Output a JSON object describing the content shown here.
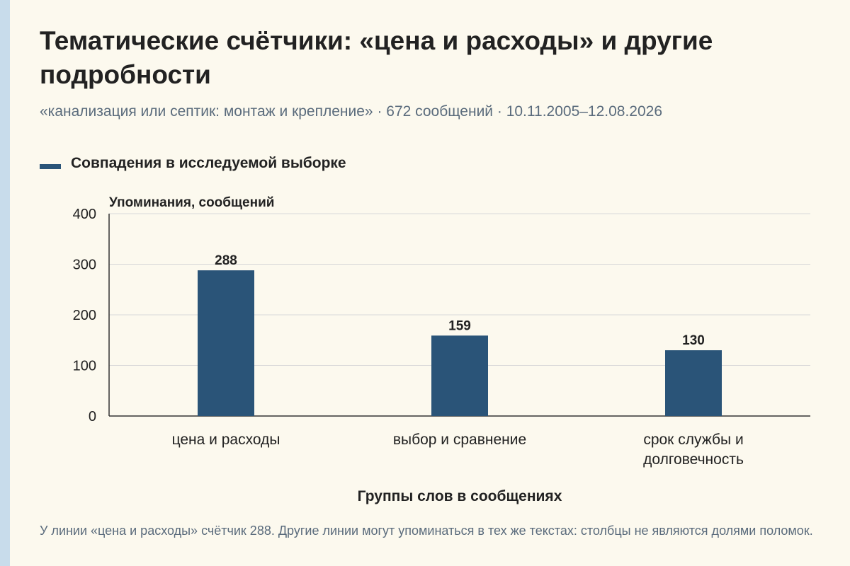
{
  "header": {
    "title": "Тематические счётчики: «цена и расходы» и другие подробности",
    "subtitle": "«канализация или септик: монтаж и крепление» · 672 сообщений · 10.11.2005–12.08.2026"
  },
  "legend": {
    "label": "Совпадения в исследуемой выборке"
  },
  "footnote": "У линии «цена и расходы» счётчик 288. Другие линии могут упоминаться в тех же текстах: столбцы не являются долями поломок.",
  "colors": {
    "bar": "#2a5478",
    "grid": "#d9d9d9",
    "axis": "#333333",
    "background": "#fcf9ee",
    "accent_stripe": "#c8dceb"
  },
  "chart_data": {
    "type": "bar",
    "title": "",
    "ylabel": "Упоминания, сообщений",
    "xlabel": "Группы слов в сообщениях",
    "ylim": [
      0,
      400
    ],
    "yticks": [
      0,
      100,
      200,
      300,
      400
    ],
    "grid": true,
    "legend_placement": "top-left",
    "categories": [
      [
        "цена и расходы"
      ],
      [
        "выбор и сравнение"
      ],
      [
        "срок службы и",
        "долговечность"
      ]
    ],
    "series": [
      {
        "name": "Совпадения в исследуемой выборке",
        "values": [
          288,
          159,
          130
        ]
      }
    ]
  }
}
